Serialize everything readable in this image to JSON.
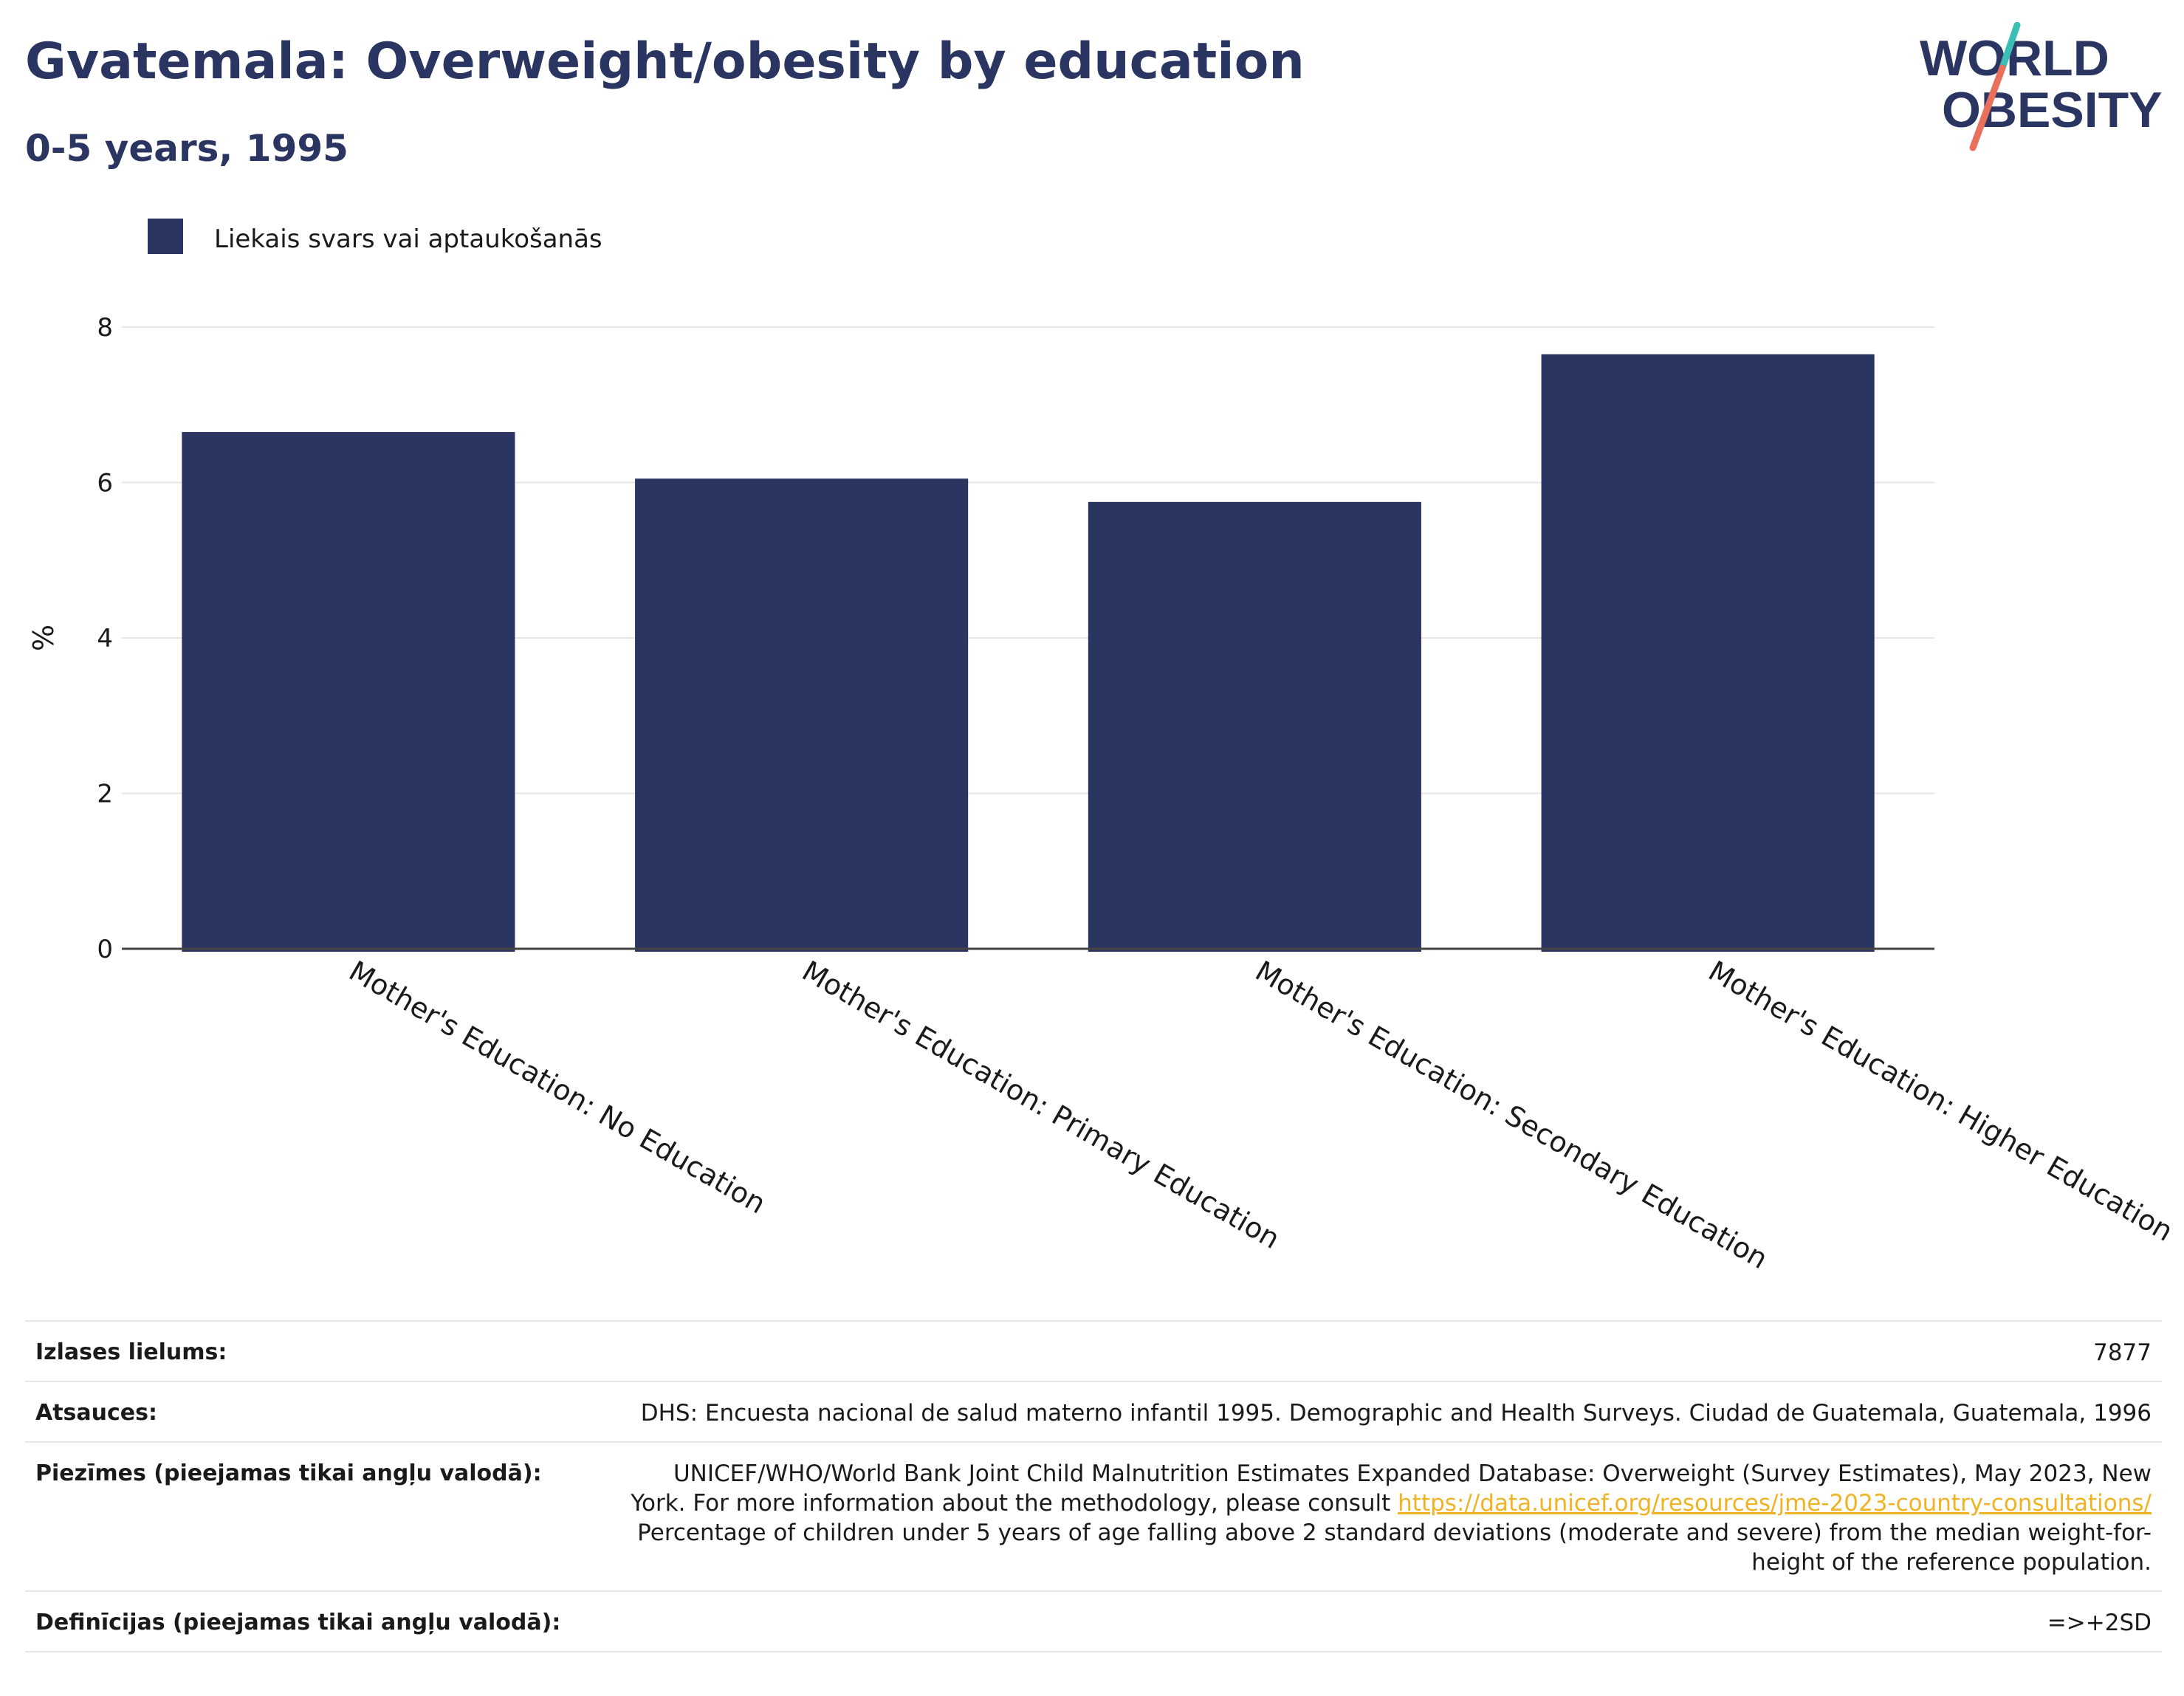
{
  "header": {
    "title": "Gvatemala: Overweight/obesity by education",
    "subtitle": "0-5 years, 1995"
  },
  "logo": {
    "line1": "WORLD",
    "line2": "OBESITY",
    "colors": [
      "#2a3561",
      "#e8705d",
      "#3bbfb4"
    ]
  },
  "colors": {
    "bar": "#2a3561",
    "title": "#2a3561",
    "link": "#f0b323",
    "grid": "#e6e6e6",
    "axis": "#444444"
  },
  "chart_data": {
    "type": "bar",
    "categories": [
      "Mother's Education: No Education",
      "Mother's Education: Primary Education",
      "Mother's Education: Secondary Education",
      "Mother's Education: Higher Education"
    ],
    "series": [
      {
        "name": "Liekais svars vai aptaukošanās",
        "values": [
          6.65,
          6.05,
          5.75,
          7.65
        ]
      }
    ],
    "ylabel": "%",
    "ylim": [
      0,
      8
    ],
    "yticks": [
      0,
      2,
      4,
      6,
      8
    ],
    "grid": true,
    "legend_position": "top-left"
  },
  "meta": {
    "sample_label": "Izlases lielums:",
    "sample_value": "7877",
    "refs_label": "Atsauces:",
    "refs_value": "DHS: Encuesta nacional de salud materno infantil 1995. Demographic and Health Surveys. Ciudad de Guatemala, Guatemala, 1996",
    "notes_label": "Piezīmes (pieejamas tikai angļu valodā):",
    "notes_text_1": "UNICEF/WHO/World Bank Joint Child Malnutrition Estimates Expanded Database: Overweight (Survey Estimates), May 2023, New",
    "notes_text_2": "York. For more information about the methodology, please consult",
    "notes_link": "https://data.unicef.org/resources/jme-2023-country-consultations/",
    "notes_text_3": "Percentage of children under 5 years of age falling above 2 standard deviations (moderate and severe) from the median weight-for-",
    "notes_text_4": "height of the reference population.",
    "defs_label": "Definīcijas (pieejamas tikai angļu valodā):",
    "defs_value": "=>+2SD"
  }
}
